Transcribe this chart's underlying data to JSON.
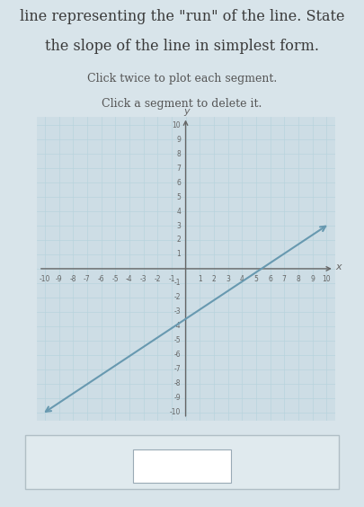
{
  "title_text1": "line representing the \"run\" of the line. State",
  "title_text2": "the slope of the line in simplest form.",
  "subtitle1": "Click twice to plot each segment.",
  "subtitle2": "Click a segment to delete it.",
  "x_min": -10,
  "x_max": 10,
  "y_min": -10,
  "y_max": 10,
  "line_x": [
    -10,
    10
  ],
  "line_y": [
    -10,
    3
  ],
  "line_color": "#6899b0",
  "line_width": 1.5,
  "grid_color": "#b8d4dd",
  "axis_color": "#666666",
  "bg_color": "#d8e4ea",
  "plot_bg_color": "#cddde5",
  "tick_fontsize": 5.5,
  "label_fontsize": 8,
  "title_fontsize": 11.5,
  "subtitle_fontsize": 9
}
